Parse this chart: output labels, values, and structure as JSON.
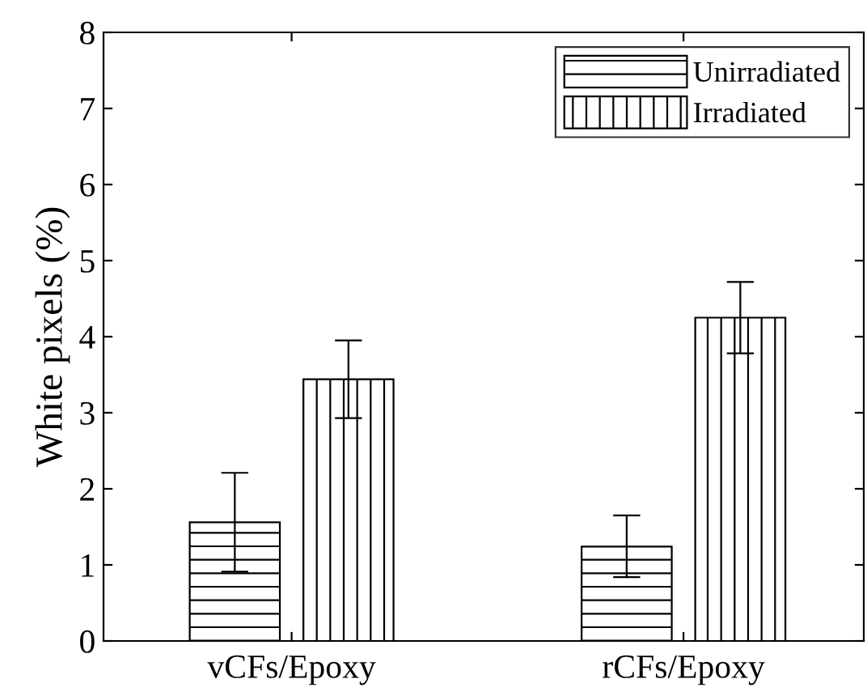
{
  "chart_data": {
    "type": "bar",
    "ylabel": "White pixels (%)",
    "categories": [
      "vCFs/Epoxy",
      "rCFs/Epoxy"
    ],
    "series": [
      {
        "name": "Unirradiated",
        "color": "#000000",
        "values": [
          1.56,
          1.24
        ],
        "errors": [
          [
            0.91,
            2.21
          ],
          [
            0.84,
            1.65
          ]
        ]
      },
      {
        "name": "Irradiated",
        "color": "#000000",
        "values": [
          3.44,
          4.25
        ],
        "errors": [
          [
            2.93,
            3.95
          ],
          [
            3.78,
            4.72
          ]
        ]
      }
    ],
    "ylim": [
      0,
      8
    ],
    "yticks": [
      0,
      1,
      2,
      3,
      4,
      5,
      6,
      7,
      8
    ],
    "grid": false,
    "legend": "top right"
  }
}
